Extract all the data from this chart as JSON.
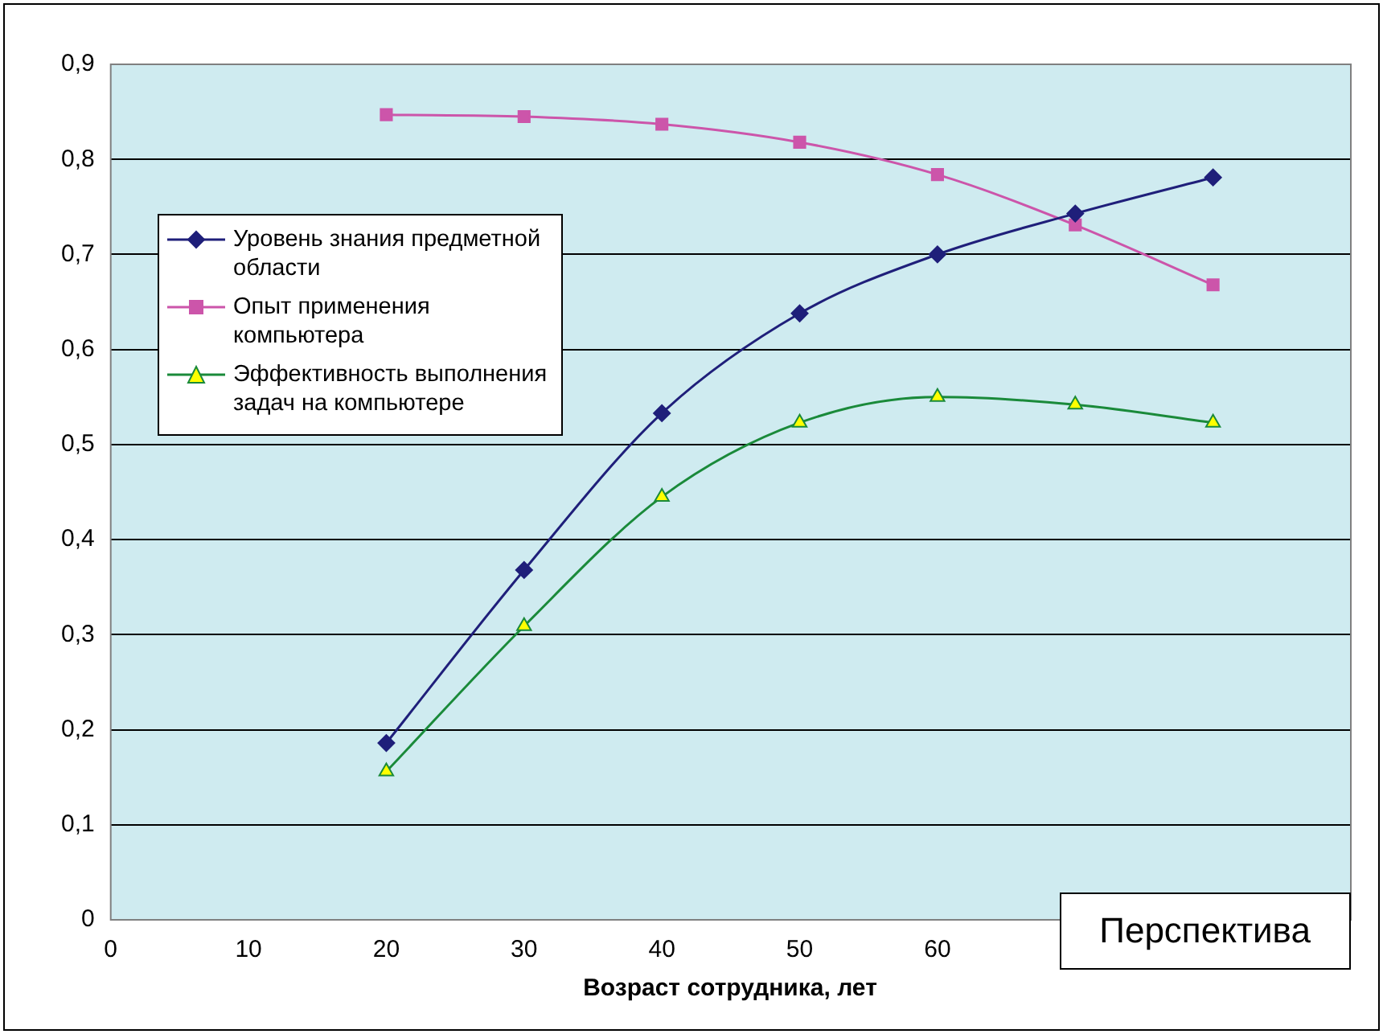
{
  "chart_data": {
    "type": "line",
    "xlabel": "Возраст сотрудника, лет",
    "x": [
      20,
      30,
      40,
      50,
      60,
      70,
      80
    ],
    "series": [
      {
        "name": "Уровень знания предметной области",
        "color": "#1f1f7a",
        "marker": "diamond",
        "values": [
          0.186,
          0.368,
          0.533,
          0.638,
          0.7,
          0.743,
          0.781
        ]
      },
      {
        "name": "Опыт применения компьютера",
        "color": "#cc55aa",
        "marker": "square",
        "values": [
          0.847,
          0.845,
          0.837,
          0.818,
          0.784,
          0.731,
          0.668
        ]
      },
      {
        "name": "Эффективность выполнения задач на компьютере",
        "color": "#1a8a3a",
        "marker": "triangle",
        "values": [
          0.156,
          0.309,
          0.445,
          0.523,
          0.55,
          0.542,
          0.523
        ]
      }
    ],
    "xlim": [
      0,
      90
    ],
    "xticks": [
      0,
      10,
      20,
      30,
      40,
      50,
      60
    ],
    "ylim": [
      0,
      0.9
    ],
    "yticks": [
      0,
      {
        "value": 0.1,
        "label": "0,1"
      },
      {
        "value": 0.2,
        "label": "0,2"
      },
      {
        "value": 0.3,
        "label": "0,3"
      },
      {
        "value": 0.4,
        "label": "0,4"
      },
      {
        "value": 0.5,
        "label": "0,5"
      },
      {
        "value": 0.6,
        "label": "0,6"
      },
      {
        "value": 0.7,
        "label": "0,7"
      },
      {
        "value": 0.8,
        "label": "0,8"
      },
      {
        "value": 0.9,
        "label": "0,9"
      }
    ],
    "grid": "y",
    "legend": "top left",
    "annotations": [
      "Перспектива"
    ]
  }
}
